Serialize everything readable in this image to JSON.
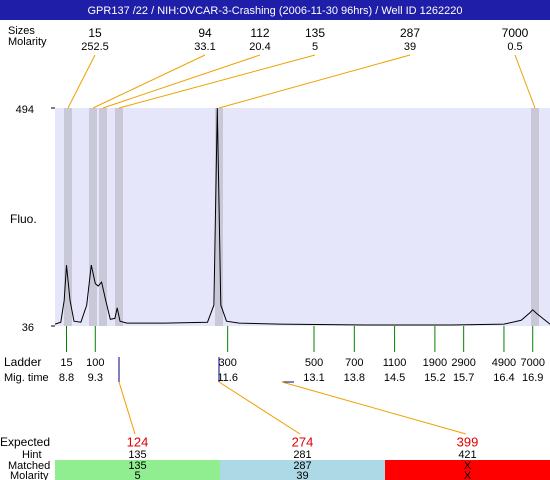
{
  "chart_data": {
    "type": "line",
    "title": "GPR137 /22 / NIH:OVCAR-3-Crashing (2006-11-30 96hrs) / Well ID 1262220",
    "y_label": "Fluo.",
    "ylim": [
      36,
      494
    ],
    "yticks": [
      494,
      36
    ],
    "xlim": [
      8.6,
      17.2
    ],
    "color": "#000000",
    "x": [
      8.6,
      8.7,
      8.76,
      8.8,
      8.86,
      8.93,
      9.05,
      9.15,
      9.23,
      9.3,
      9.35,
      9.41,
      9.48,
      9.56,
      9.64,
      9.68,
      9.73,
      9.85,
      10.5,
      11.25,
      11.36,
      11.42,
      11.48,
      11.58,
      11.8,
      12.5,
      14.0,
      15.5,
      16.4,
      16.7,
      16.85,
      16.9,
      16.97,
      17.2
    ],
    "values": [
      40,
      44,
      90,
      164,
      90,
      46,
      44,
      80,
      164,
      125,
      120,
      128,
      90,
      50,
      52,
      74,
      46,
      42,
      42,
      44,
      80,
      494,
      80,
      46,
      42,
      40,
      38,
      38,
      40,
      48,
      64,
      70,
      62,
      40
    ]
  },
  "peaks": {
    "size_label": "Sizes",
    "molarity_label": "Molarity",
    "sizes": [
      15,
      94,
      112,
      135,
      287,
      7000
    ],
    "molarities": [
      252.5,
      33.1,
      20.4,
      5,
      39,
      0.5
    ]
  },
  "ladder": {
    "label": "Ladder",
    "mig_label": "Mig. time",
    "sizes": [
      15,
      100,
      300,
      500,
      700,
      1100,
      1900,
      2900,
      4900,
      7000
    ],
    "mig_times": [
      8.8,
      9.3,
      11.6,
      13.1,
      13.8,
      14.5,
      15.2,
      15.7,
      16.4,
      16.9
    ]
  },
  "expected": {
    "label": "Expected",
    "hint_label": "Hint",
    "matched_label": "Matched",
    "molarity_label": "Molarity",
    "values": [
      124,
      274,
      399
    ],
    "hints": [
      135,
      281,
      421
    ],
    "matched": [
      135,
      287,
      "X"
    ],
    "molarities": [
      5,
      39,
      "X"
    ],
    "colors": [
      "#90ee90",
      "#add8e6",
      "#ff0000"
    ]
  }
}
